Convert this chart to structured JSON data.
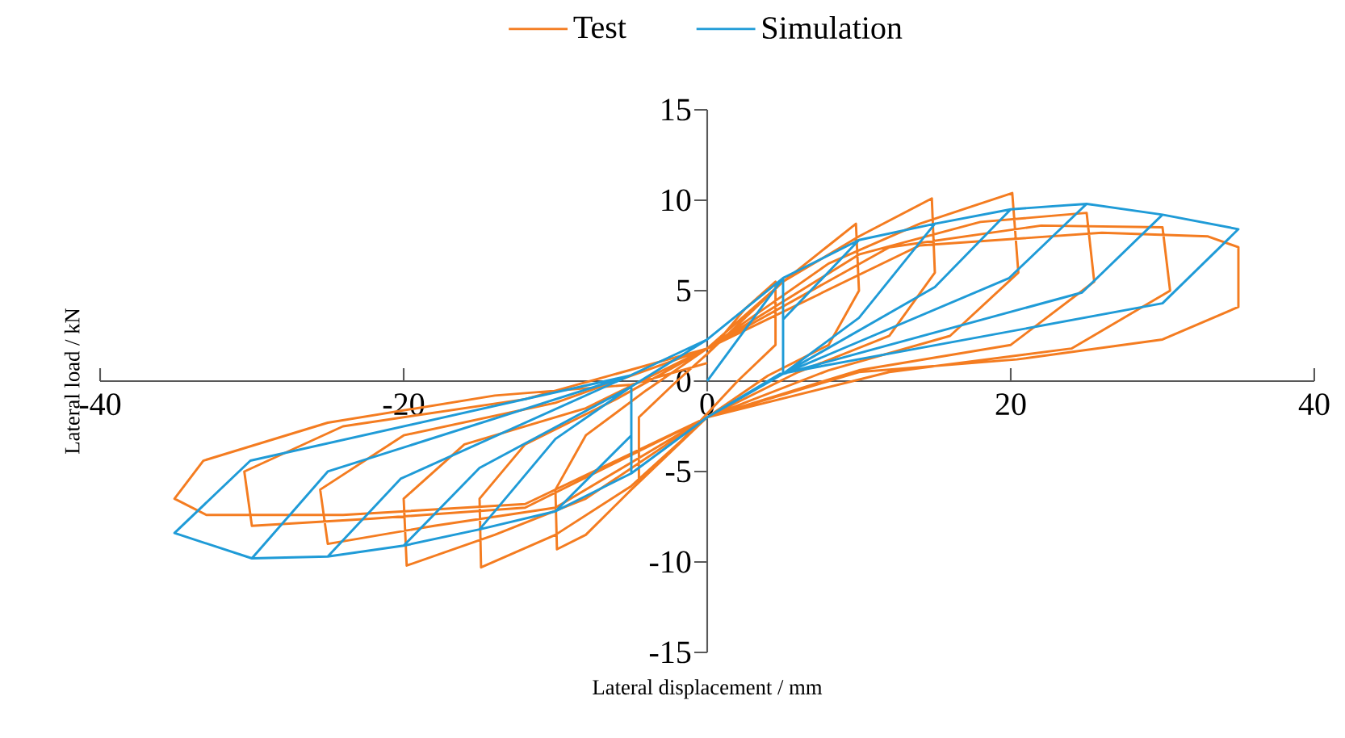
{
  "chart_data": {
    "type": "line",
    "xlabel": "Lateral displacement / mm",
    "ylabel": "Lateral load / kN",
    "xlim": [
      -40,
      40
    ],
    "ylim": [
      -15,
      15
    ],
    "xticks": [
      -40,
      -20,
      0,
      20,
      40
    ],
    "yticks": [
      -15,
      -10,
      -5,
      0,
      5,
      10,
      15
    ],
    "legend": "top",
    "grid": false,
    "line_style": "solid",
    "series": [
      {
        "name": "Test",
        "color": "#f47c20",
        "x": [
          0,
          2.5,
          4.5,
          4.5,
          2,
          0,
          -2.5,
          -4.5,
          -4.5,
          -2,
          0,
          5,
          8,
          9.8,
          10,
          8,
          4,
          0,
          -5,
          -8,
          -9.9,
          -10,
          -8,
          -4,
          0,
          5,
          10,
          14.8,
          15,
          12,
          6,
          0,
          -5,
          -10,
          -14.9,
          -15,
          -12,
          -6,
          0,
          8,
          14,
          20.1,
          20.5,
          16,
          8,
          0,
          -8,
          -14,
          -19.8,
          -20,
          -16,
          -8,
          0,
          10,
          18,
          25,
          25.5,
          20,
          10,
          0,
          -10,
          -18,
          -25,
          -25.5,
          -20,
          -10,
          0,
          12,
          22,
          30,
          30.5,
          24,
          12,
          0,
          -12,
          -22,
          -30,
          -30.5,
          -24,
          -12,
          0,
          14,
          26,
          33,
          35,
          35,
          30,
          20.4,
          10,
          0,
          -12,
          -24,
          -33,
          -35.1,
          -33.2,
          -25,
          -14,
          -5,
          0
        ],
        "values": [
          1.5,
          4,
          5.5,
          2,
          0,
          -1.8,
          -4,
          -5.5,
          -2,
          0,
          1.5,
          5.5,
          7.5,
          8.7,
          5,
          2,
          0.3,
          -2,
          -6,
          -8.5,
          -9.3,
          -6,
          -3,
          -0.5,
          1.8,
          5.5,
          8,
          10.1,
          6,
          2.5,
          0.5,
          -2,
          -5.8,
          -8.5,
          -10.3,
          -6.5,
          -3.5,
          -1,
          1.8,
          6.5,
          8.7,
          10.4,
          6,
          2.5,
          0.6,
          -2,
          -6.5,
          -8.5,
          -10.2,
          -6.5,
          -3.5,
          -1.5,
          1.8,
          7,
          8.8,
          9.3,
          5.5,
          2,
          0.6,
          -2,
          -7,
          -8,
          -9,
          -6,
          -3,
          -1.2,
          1.8,
          7.4,
          8.6,
          8.5,
          5,
          1.8,
          0.5,
          -2,
          -7,
          -7.6,
          -8,
          -5,
          -2.5,
          -1,
          1.8,
          7.5,
          8.2,
          8,
          7.4,
          4.1,
          2.3,
          1.2,
          0.5,
          -2,
          -6.8,
          -7.4,
          -7.4,
          -6.5,
          -4.4,
          -2.3,
          -0.8,
          -0.2,
          1
        ]
      },
      {
        "name": "Simulation",
        "color": "#1f9bd7",
        "x": [
          0,
          5,
          5,
          0,
          -5,
          -5,
          0,
          5,
          10,
          5,
          5,
          0,
          -5,
          -10,
          -5,
          -5,
          0,
          5,
          10,
          15,
          10,
          5,
          0,
          -5,
          -10,
          -15,
          -10,
          -5,
          0,
          5,
          10,
          15,
          20,
          15,
          5,
          0,
          -5,
          -10,
          -15,
          -20,
          -15,
          -5,
          0,
          5,
          10,
          15,
          20,
          25,
          19.9,
          5,
          0,
          -5,
          -10,
          -15,
          -20,
          -25,
          -20.2,
          -5.1,
          0,
          5,
          10,
          15,
          20,
          25,
          30,
          24.7,
          5,
          0,
          -5,
          -10,
          -15,
          -20,
          -25,
          -30,
          -25,
          -5.1,
          0,
          5,
          10,
          15,
          20,
          25,
          30,
          35,
          30,
          4.8,
          0,
          -5,
          -10,
          -15,
          -20,
          -25,
          -30,
          -35.1,
          -30.1,
          -5.1
        ],
        "values": [
          0,
          5.7,
          0.4,
          -2,
          -5.1,
          -0.3,
          2.3,
          5.7,
          7.8,
          3.4,
          0.4,
          -2,
          -5.1,
          -7.2,
          -3,
          -0.3,
          2.3,
          5.7,
          7.8,
          8.7,
          3.5,
          0.4,
          -2,
          -5.1,
          -7.2,
          -8.2,
          -3.2,
          -0.3,
          2.3,
          5.7,
          7.8,
          8.7,
          9.5,
          5.2,
          0.4,
          -2,
          -5.1,
          -7.2,
          -8.2,
          -9.1,
          -4.8,
          -0.3,
          2.3,
          5.7,
          7.8,
          8.7,
          9.5,
          9.8,
          5.7,
          0.4,
          -2,
          -5.1,
          -7.2,
          -8.2,
          -9.1,
          -9.7,
          -5.4,
          0.3,
          2.3,
          5.7,
          7.8,
          8.7,
          9.5,
          9.8,
          9.2,
          4.9,
          0.4,
          -2,
          -5.1,
          -7.2,
          -8.2,
          -9.1,
          -9.7,
          -9.8,
          -5,
          0.3,
          2.3,
          5.7,
          7.8,
          8.7,
          9.5,
          9.8,
          9.2,
          8.4,
          4.3,
          0.4,
          -2,
          -5.1,
          -7.2,
          -8.2,
          -9.1,
          -9.7,
          -9.8,
          -8.4,
          -4.4,
          0.3
        ]
      }
    ]
  }
}
